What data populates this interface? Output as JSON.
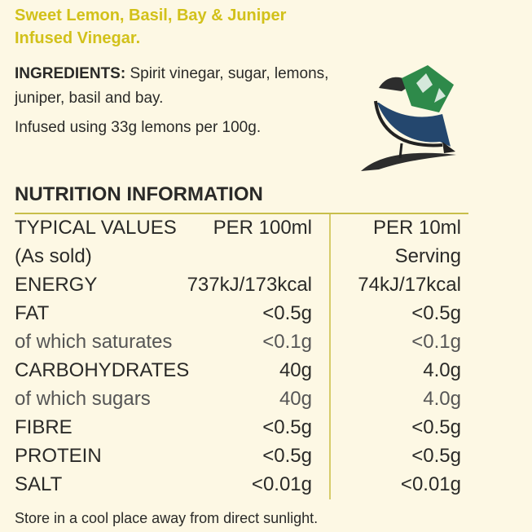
{
  "title": [
    "Sweet Lemon, Basil, Bay & Juniper",
    "Infused Vinegar."
  ],
  "ingredients": {
    "label": "INGREDIENTS:",
    "text": "Spirit vinegar, sugar, lemons, juniper, basil and bay."
  },
  "infusion": "Infused using 33g lemons per 100g.",
  "nutrition": {
    "heading": "NUTRITION INFORMATION",
    "header": [
      [
        "TYPICAL VALUES",
        "PER 100ml",
        "PER 10ml"
      ],
      [
        "(As sold)",
        null,
        "Serving"
      ]
    ],
    "rows": [
      [
        "ENERGY",
        "737kJ/173kcal",
        "74kJ/17kcal"
      ],
      [
        "FAT",
        "<0.5g",
        "<0.5g"
      ],
      [
        "of which saturates",
        "<0.1g",
        "<0.1g"
      ],
      [
        "CARBOHYDRATES",
        "40g",
        "4.0g"
      ],
      [
        "of which sugars",
        "40g",
        "4.0g"
      ],
      [
        "FIBRE",
        "<0.5g",
        "<0.5g"
      ],
      [
        "PROTEIN",
        "<0.5g",
        "<0.5g"
      ],
      [
        "SALT",
        "<0.01g",
        "<0.01g"
      ]
    ]
  },
  "footer": "Store in a cool place away from direct sunlight."
}
